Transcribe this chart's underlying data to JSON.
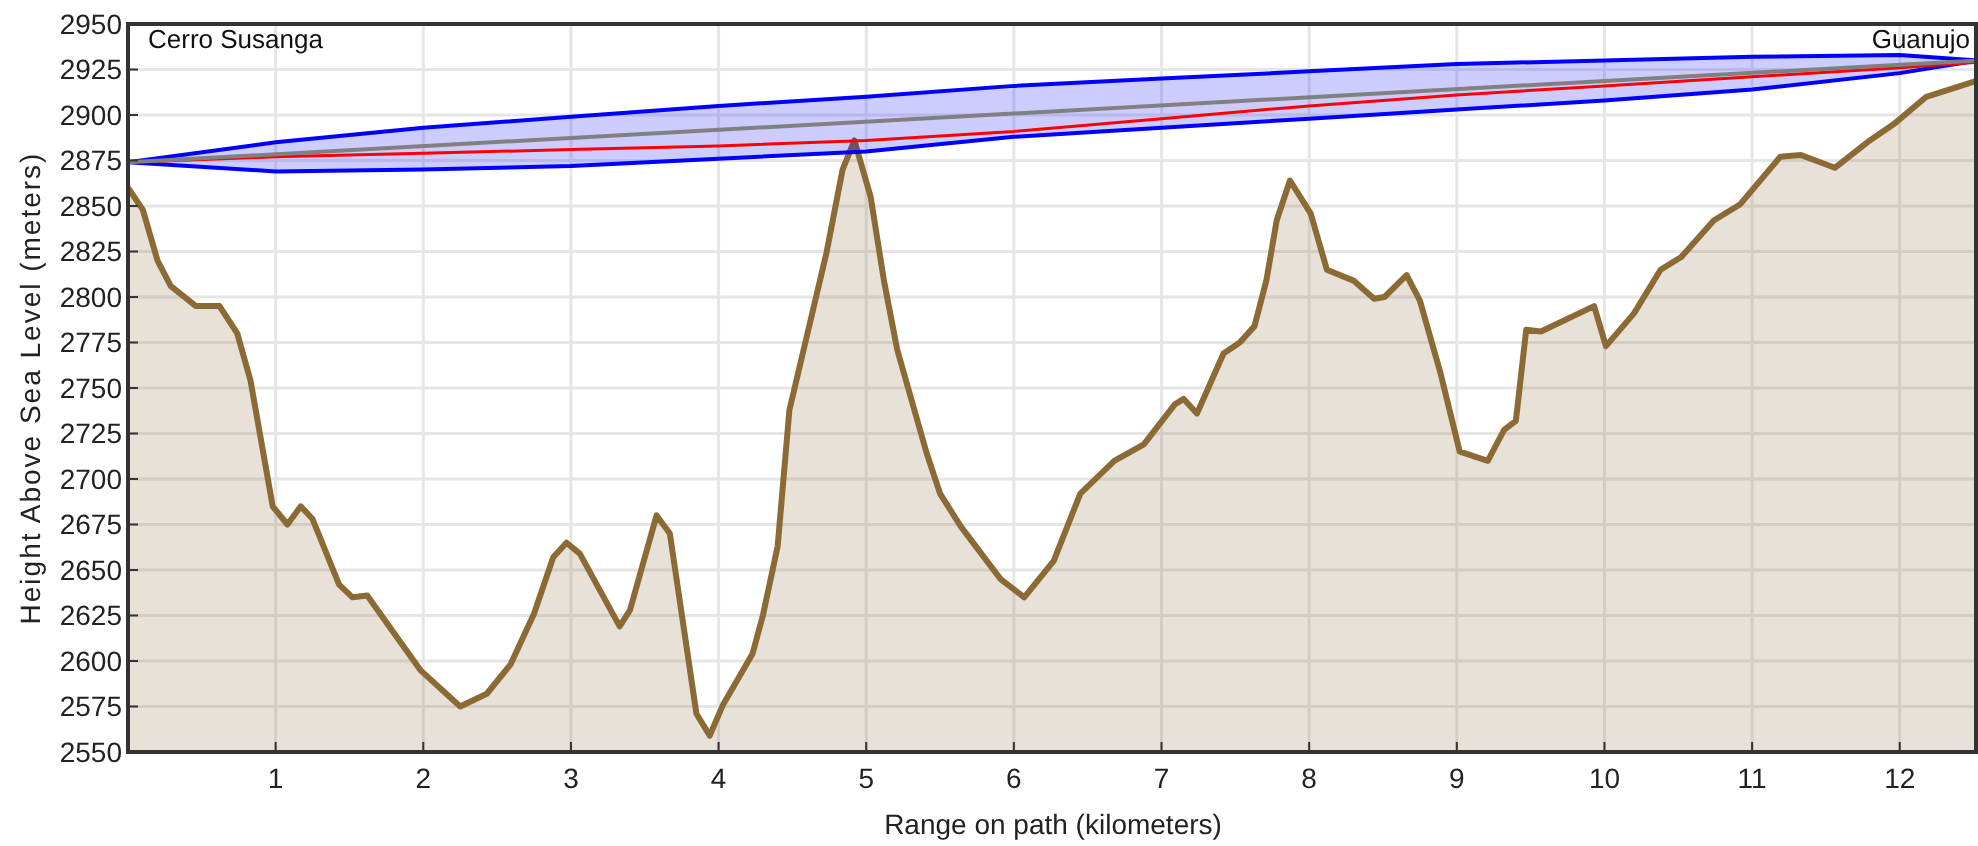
{
  "chart_data": {
    "type": "area",
    "xlabel": "Range on path (kilometers)",
    "ylabel": "Height Above Sea Level (meters)",
    "annotations": [
      "Cerro Susanga",
      "Guanujo"
    ],
    "xlim": [
      0,
      12.53
    ],
    "xticks": [
      1,
      2,
      3,
      4,
      5,
      6,
      7,
      8,
      9,
      10,
      11,
      12
    ],
    "ylim": [
      2550,
      2950
    ],
    "yticks": [
      2550,
      2575,
      2600,
      2625,
      2650,
      2675,
      2700,
      2725,
      2750,
      2775,
      2800,
      2825,
      2850,
      2875,
      2900,
      2925,
      2950
    ],
    "grid": true,
    "series": [
      {
        "color": "#8b6a35",
        "x": [
          0,
          0.1,
          0.2,
          0.29,
          0.46,
          0.62,
          0.74,
          0.83,
          0.98,
          1.08,
          1.17,
          1.25,
          1.43,
          1.52,
          1.62,
          1.98,
          2.25,
          2.43,
          2.59,
          2.75,
          2.88,
          2.97,
          3.06,
          3.33,
          3.4,
          3.58,
          3.67,
          3.85,
          3.94,
          4.03,
          4.23,
          4.3,
          4.4,
          4.48,
          4.73,
          4.84,
          4.92,
          5.03,
          5.12,
          5.21,
          5.41,
          5.5,
          5.64,
          5.91,
          6.07,
          6.27,
          6.45,
          6.68,
          6.88,
          7.09,
          7.15,
          7.24,
          7.42,
          7.53,
          7.63,
          7.71,
          7.78,
          7.87,
          8.01,
          8.12,
          8.3,
          8.44,
          8.51,
          8.66,
          8.75,
          8.89,
          9.02,
          9.21,
          9.32,
          9.4,
          9.47,
          9.57,
          9.93,
          10.01,
          10.2,
          10.38,
          10.52,
          10.74,
          10.92,
          11.19,
          11.33,
          11.56,
          11.78,
          11.96,
          12.18,
          12.53
        ],
        "values": [
          2860,
          2848,
          2820,
          2806,
          2795,
          2795,
          2780,
          2754,
          2685,
          2675,
          2685,
          2678,
          2642,
          2635,
          2636,
          2595,
          2575,
          2582,
          2598,
          2626,
          2657,
          2665,
          2659,
          2619,
          2628,
          2680,
          2670,
          2571,
          2559,
          2576,
          2604,
          2625,
          2663,
          2738,
          2824,
          2870,
          2886,
          2855,
          2809,
          2771,
          2714,
          2692,
          2674,
          2645,
          2635,
          2655,
          2692,
          2710,
          2719,
          2741,
          2744,
          2736,
          2769,
          2775,
          2784,
          2809,
          2842,
          2864,
          2846,
          2815,
          2809,
          2799,
          2800,
          2812,
          2798,
          2758,
          2715,
          2710,
          2727,
          2732,
          2782,
          2781,
          2795,
          2773,
          2791,
          2815,
          2822,
          2842,
          2851,
          2877,
          2878,
          2871,
          2885,
          2895,
          2910,
          2919
        ]
      },
      {
        "type": "line",
        "color": "#ff0000",
        "x": [
          0,
          1,
          2,
          3,
          4,
          5,
          6,
          7,
          8,
          9,
          10,
          11,
          12,
          12.53
        ],
        "values": [
          2874,
          2877,
          2879,
          2881,
          2883,
          2886,
          2891,
          2898,
          2905,
          2911,
          2916,
          2921,
          2926,
          2929
        ],
        "lower": [
          2874,
          2869,
          2870,
          2872,
          2876,
          2880,
          2888,
          2893,
          2898,
          2903,
          2908,
          2914,
          2923,
          2930
        ],
        "upper": [
          2874,
          2885,
          2893,
          2899,
          2905,
          2910,
          2916,
          2920,
          2924,
          2928,
          2930,
          2932,
          2933,
          2930
        ]
      },
      {
        "type": "line",
        "color": "#808080",
        "x": [
          0,
          12.53
        ],
        "values": [
          2874,
          2930
        ]
      }
    ]
  }
}
